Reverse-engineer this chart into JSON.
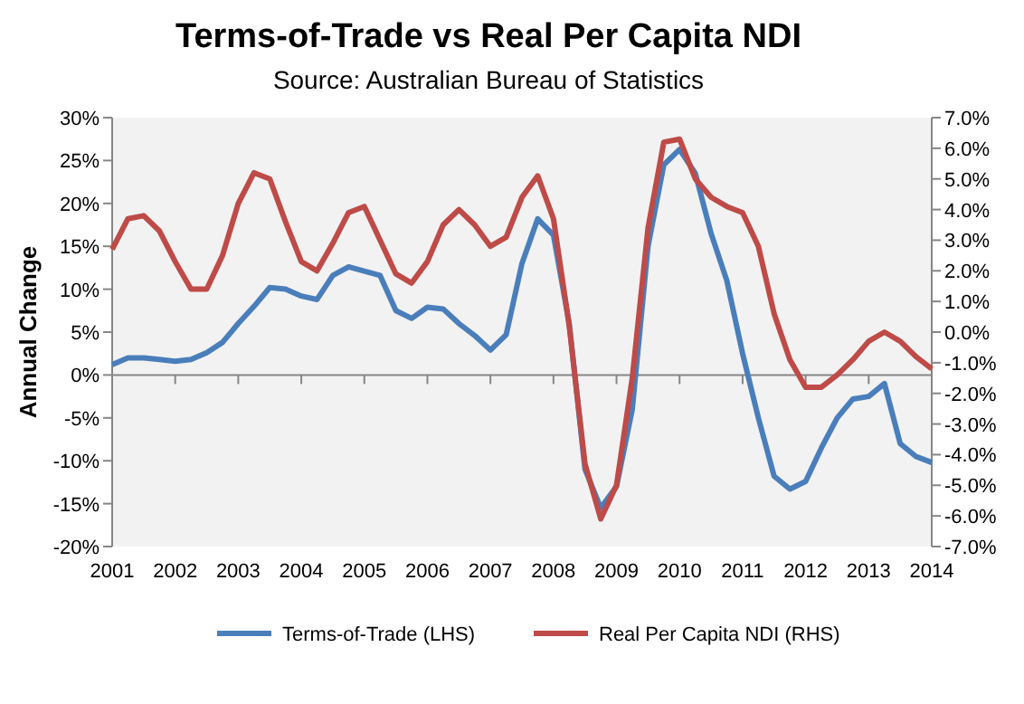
{
  "chart_data": {
    "type": "line",
    "title": "Terms-of-Trade vs Real Per Capita NDI",
    "subtitle": "Source: Australian Bureau of Statistics",
    "ylabel": "Annual Change",
    "x": [
      2001,
      2001.25,
      2001.5,
      2001.75,
      2002,
      2002.25,
      2002.5,
      2002.75,
      2003,
      2003.25,
      2003.5,
      2003.75,
      2004,
      2004.25,
      2004.5,
      2004.75,
      2005,
      2005.25,
      2005.5,
      2005.75,
      2006,
      2006.25,
      2006.5,
      2006.75,
      2007,
      2007.25,
      2007.5,
      2007.75,
      2008,
      2008.25,
      2008.5,
      2008.75,
      2009,
      2009.25,
      2009.5,
      2009.75,
      2010,
      2010.25,
      2010.5,
      2010.75,
      2011,
      2011.25,
      2011.5,
      2011.75,
      2012,
      2012.25,
      2012.5,
      2012.75,
      2013,
      2013.25,
      2013.5,
      2013.75,
      2014
    ],
    "series": [
      {
        "name": "Terms-of-Trade (LHS)",
        "color": "#4a7ebb",
        "values": [
          1.2,
          2,
          2,
          1.8,
          1.6,
          1.8,
          2.6,
          3.8,
          6,
          8,
          10.2,
          10,
          9.2,
          8.8,
          11.6,
          12.6,
          12.1,
          11.6,
          7.5,
          6.6,
          7.9,
          7.7,
          6,
          4.6,
          2.9,
          4.7,
          13,
          18.2,
          16.3,
          6,
          -11,
          -15.5,
          -13,
          -4,
          15,
          24.5,
          26.3,
          23.5,
          16.5,
          11,
          2.5,
          -5,
          -11.8,
          -13.3,
          -12.4,
          -8.5,
          -5,
          -2.8,
          -2.5,
          -1,
          -8,
          -9.5,
          -10.2
        ]
      },
      {
        "name": "Real Per Capita NDI (RHS)",
        "color": "#be4b48",
        "axis": "y2",
        "values": [
          2.7,
          3.7,
          3.8,
          3.3,
          2.3,
          1.4,
          1.4,
          2.5,
          4.2,
          5.2,
          5.0,
          3.6,
          2.3,
          2.0,
          2.9,
          3.9,
          4.1,
          3.0,
          1.9,
          1.6,
          2.3,
          3.5,
          4.0,
          3.5,
          2.8,
          3.1,
          4.4,
          5.1,
          3.7,
          0.2,
          -4.3,
          -6.1,
          -5.0,
          -1.5,
          3.4,
          6.2,
          6.3,
          5.0,
          4.4,
          4.1,
          3.9,
          2.8,
          0.6,
          -0.9,
          -1.8,
          -1.8,
          -1.4,
          -0.9,
          -0.3,
          0.0,
          -0.3,
          -0.8,
          -1.2
        ]
      }
    ],
    "xlim": [
      2001,
      2014
    ],
    "xticks": [
      2001,
      2002,
      2003,
      2004,
      2005,
      2006,
      2007,
      2008,
      2009,
      2010,
      2011,
      2012,
      2013,
      2014
    ],
    "ylim": [
      -20,
      30
    ],
    "yticks": [
      {
        "value": -20,
        "label": "-20%"
      },
      {
        "value": -15,
        "label": "-15%"
      },
      {
        "value": -10,
        "label": "-10%"
      },
      {
        "value": -5,
        "label": "-5%"
      },
      {
        "value": 0,
        "label": "0%"
      },
      {
        "value": 5,
        "label": "5%"
      },
      {
        "value": 10,
        "label": "10%"
      },
      {
        "value": 15,
        "label": "15%"
      },
      {
        "value": 20,
        "label": "20%"
      },
      {
        "value": 25,
        "label": "25%"
      },
      {
        "value": 30,
        "label": "30%"
      }
    ],
    "y2lim": [
      -7,
      7
    ],
    "y2ticks": [
      {
        "value": -7,
        "label": "-7.0%"
      },
      {
        "value": -6,
        "label": "-6.0%"
      },
      {
        "value": -5,
        "label": "-5.0%"
      },
      {
        "value": -4,
        "label": "-4.0%"
      },
      {
        "value": -3,
        "label": "-3.0%"
      },
      {
        "value": -2,
        "label": "-2.0%"
      },
      {
        "value": -1,
        "label": "-1.0%"
      },
      {
        "value": 0,
        "label": "0.0%"
      },
      {
        "value": 1,
        "label": "1.0%"
      },
      {
        "value": 2,
        "label": "2.0%"
      },
      {
        "value": 3,
        "label": "3.0%"
      },
      {
        "value": 4,
        "label": "4.0%"
      },
      {
        "value": 5,
        "label": "5.0%"
      },
      {
        "value": 6,
        "label": "6.0%"
      },
      {
        "value": 7,
        "label": "7.0%"
      }
    ],
    "legend": "bottom",
    "marker": "none",
    "line_style": "solid"
  }
}
